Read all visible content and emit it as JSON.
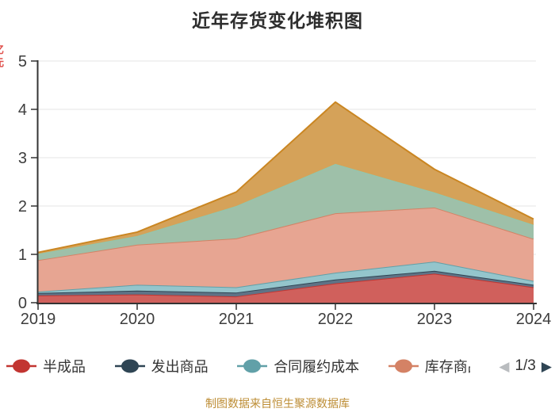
{
  "title": "近年存货变化堆积图",
  "y_axis": {
    "unit": "亿元",
    "unit_color": "#e0504c",
    "ticks": [
      "5",
      "4",
      "3",
      "2",
      "1",
      "0"
    ],
    "min": 0,
    "max": 5
  },
  "x_axis": {
    "labels": [
      "2019",
      "2020",
      "2021",
      "2022",
      "2023",
      "2024"
    ]
  },
  "legend": {
    "items": [
      {
        "label": "半成品",
        "color": "#c23531"
      },
      {
        "label": "发出商品",
        "color": "#2f4554"
      },
      {
        "label": "合同履约成本",
        "color": "#61a0a8"
      },
      {
        "label": "库存商品",
        "color": "#d48265"
      }
    ],
    "pager": {
      "prev_icon": "◀",
      "prev_color": "#b9bcbf",
      "text": "1/3",
      "next_icon": "▶",
      "next_color": "#2f4554"
    }
  },
  "footer": {
    "text": "制图数据来自恒生聚源数据库",
    "color": "#bd8d35"
  },
  "chart_data": {
    "type": "area",
    "stacked": true,
    "title": "近年存货变化堆积图",
    "x": [
      2019,
      2020,
      2021,
      2022,
      2023,
      2024
    ],
    "ylim": [
      0,
      5
    ],
    "grid": true,
    "legend_position": "bottom",
    "legend_page": "1/3",
    "series": [
      {
        "name": "半成品",
        "line": "#c23531",
        "fill": "#d0605c",
        "values": [
          0.15,
          0.17,
          0.13,
          0.4,
          0.6,
          0.32
        ]
      },
      {
        "name": "发出商品",
        "line": "#2f4554",
        "fill": "#5f7386",
        "values": [
          0.05,
          0.08,
          0.08,
          0.08,
          0.06,
          0.05
        ]
      },
      {
        "name": "合同履约成本",
        "line": "#61a0a8",
        "fill": "#94c5cc",
        "values": [
          0.03,
          0.12,
          0.11,
          0.14,
          0.19,
          0.08
        ]
      },
      {
        "name": "库存商品",
        "line": "#d48265",
        "fill": "#e7a592",
        "values": [
          0.65,
          0.83,
          1.01,
          1.23,
          1.12,
          0.87
        ]
      },
      {
        "name": "",
        "line": "#91c7ae",
        "fill": "#9ec0a9",
        "values": [
          0.13,
          0.18,
          0.67,
          1.02,
          0.31,
          0.29
        ]
      },
      {
        "name": "",
        "line": "#ca8622",
        "fill": "#d5a259",
        "values": [
          0.03,
          0.08,
          0.29,
          1.28,
          0.48,
          0.12
        ]
      }
    ],
    "totals": [
      1.04,
      1.46,
      2.29,
      4.15,
      2.76,
      1.73
    ]
  },
  "colors": {
    "axis": "#333333",
    "gridline": "#e4e4e4",
    "tick_label": "#3d3d3d"
  }
}
